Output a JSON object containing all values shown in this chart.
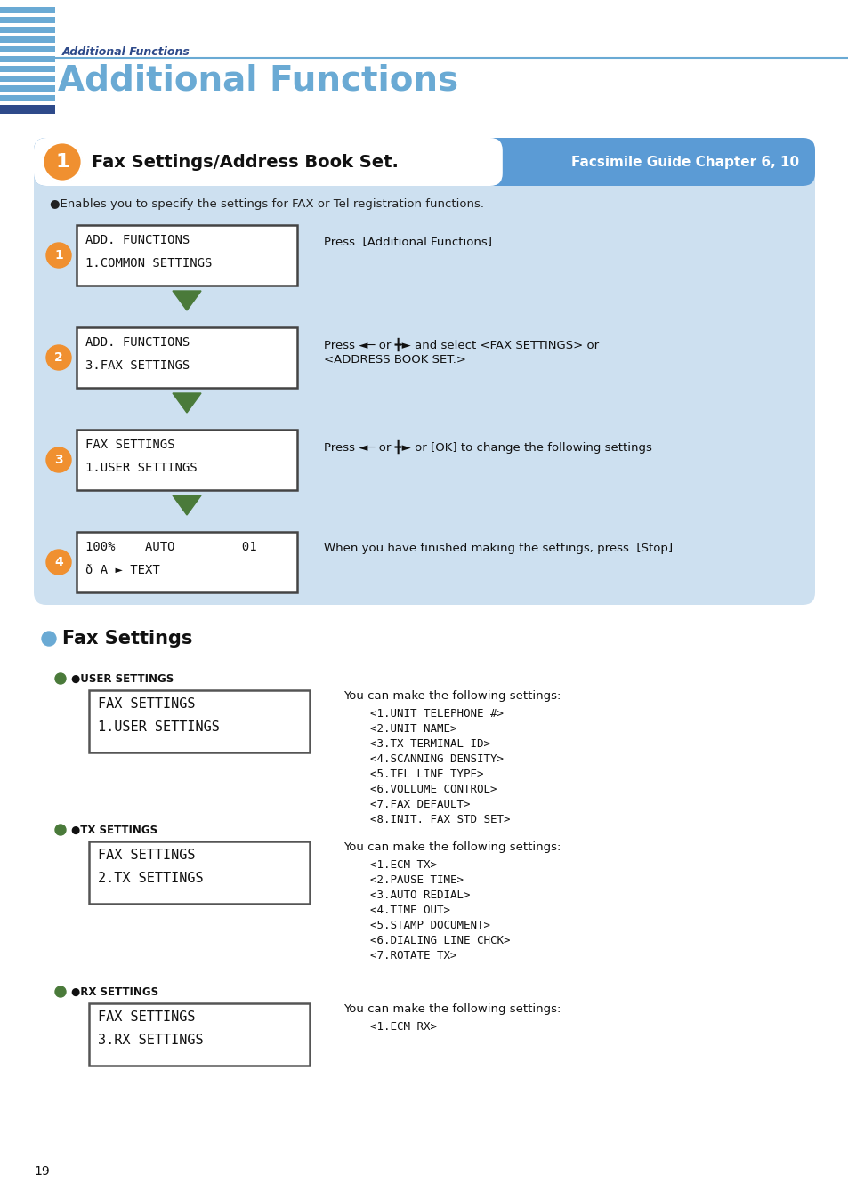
{
  "page_bg": "#ffffff",
  "stripe_color": "#6aaad4",
  "header_italic_text": "Additional Functions",
  "header_italic_color": "#2e4a8a",
  "header_line_color": "#6aaad4",
  "title_text": "Additional Functions",
  "title_color": "#6aaad4",
  "dark_blue_bar": "#2e4a8a",
  "blue_box_bg": "#cde0f0",
  "orange_color": "#f09030",
  "green_arrow": "#4a7a3a",
  "screen_border": "#444444",
  "screen_font": "#111111",
  "bullet_blue": "#6aaad4",
  "bullet_green": "#4a7a3a",
  "page_number": "19",
  "box_title": "Fax Settings/Address Book Set.",
  "box_guide": "Facsimile Guide Chapter 6, 10",
  "enable_text": "Enables you to specify the settings for FAX or Tel registration functions.",
  "steps": [
    {
      "num": "1",
      "line1": "ADD. FUNCTIONS",
      "line2": "1.COMMON SETTINGS",
      "desc1": "Press  [Additional Functions]",
      "desc2": ""
    },
    {
      "num": "2",
      "line1": "ADD. FUNCTIONS",
      "line2": "3.FAX SETTINGS",
      "desc1": "Press ◄─ or ╋► and select <FAX SETTINGS> or",
      "desc2": "<ADDRESS BOOK SET.>"
    },
    {
      "num": "3",
      "line1": "FAX SETTINGS",
      "line2": "1.USER SETTINGS",
      "desc1": "Press ◄─ or ╋► or [OK] to change the following settings",
      "desc2": ""
    },
    {
      "num": "4",
      "line1": "100%    AUTO         01",
      "line2": "ð A ► TEXT",
      "desc1": "When you have finished making the settings, press  [Stop]",
      "desc2": ""
    }
  ],
  "fax_title": "Fax Settings",
  "sections": [
    {
      "label": "USER SETTINGS",
      "line1": "FAX SETTINGS",
      "line2": "1.USER SETTINGS",
      "can_make": "You can make the following settings:",
      "items": [
        "<1.UNIT TELEPHONE #>",
        "<2.UNIT NAME>",
        "<3.TX TERMINAL ID>",
        "<4.SCANNING DENSITY>",
        "<5.TEL LINE TYPE>",
        "<6.VOLLUME CONTROL>",
        "<7.FAX DEFAULT>",
        "<8.INIT. FAX STD SET>"
      ]
    },
    {
      "label": "TX SETTINGS",
      "line1": "FAX SETTINGS",
      "line2": "2.TX SETTINGS",
      "can_make": "You can make the following settings:",
      "items": [
        "<1.ECM TX>",
        "<2.PAUSE TIME>",
        "<3.AUTO REDIAL>",
        "<4.TIME OUT>",
        "<5.STAMP DOCUMENT>",
        "<6.DIALING LINE CHCK>",
        "<7.ROTATE TX>"
      ]
    },
    {
      "label": "RX SETTINGS",
      "line1": "FAX SETTINGS",
      "line2": "3.RX SETTINGS",
      "can_make": "You can make the following settings:",
      "items": [
        "<1.ECM RX>"
      ]
    }
  ]
}
